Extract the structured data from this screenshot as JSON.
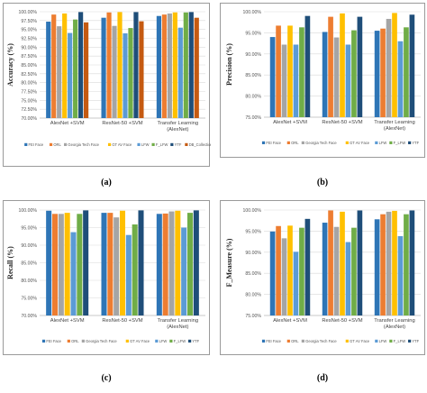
{
  "captions": [
    "(a)",
    "(b)",
    "(c)",
    "(d)"
  ],
  "charts": [
    {
      "type": "bar",
      "ylabel": "Accuracy (%)",
      "yticks": [
        "70.00%",
        "72.50%",
        "75.00%",
        "77.50%",
        "80.00%",
        "82.50%",
        "85.00%",
        "87.50%",
        "90.00%",
        "92.50%",
        "95.00%",
        "97.50%",
        "100.00%"
      ],
      "ylim": [
        70,
        100
      ],
      "categories": [
        [
          "AlexNet +SVM"
        ],
        [
          "ResNet-50 +SVM"
        ],
        [
          "Transfer Learning",
          "(AlexNet)"
        ]
      ],
      "series": [
        {
          "name": "FEI Face",
          "color": "#2e75b6",
          "values": [
            97.2,
            98.3,
            98.8
          ]
        },
        {
          "name": "ORL",
          "color": "#ed7d31",
          "values": [
            99.2,
            99.8,
            99.2
          ]
        },
        {
          "name": "Georgia Tech Face",
          "color": "#a5a5a5",
          "values": [
            95.9,
            96.0,
            99.5
          ]
        },
        {
          "name": "GT AV Face",
          "color": "#ffc000",
          "values": [
            99.5,
            99.9,
            99.8
          ]
        },
        {
          "name": "LFW",
          "color": "#5b9bd5",
          "values": [
            94.0,
            93.9,
            95.5
          ]
        },
        {
          "name": "F_LFW",
          "color": "#70ad47",
          "values": [
            97.8,
            95.4,
            99.8
          ]
        },
        {
          "name": "YTF",
          "color": "#1f4e79",
          "values": [
            99.9,
            99.9,
            99.9
          ]
        },
        {
          "name": "DB_Collection",
          "color": "#c55a11",
          "values": [
            97.0,
            97.3,
            98.3
          ]
        }
      ]
    },
    {
      "type": "bar",
      "ylabel": "Precision (%)",
      "yticks": [
        "75.00%",
        "80.00%",
        "85.00%",
        "90.00%",
        "95.00%",
        "100.00%"
      ],
      "ylim": [
        75,
        100
      ],
      "categories": [
        [
          "AlexNet +SVM"
        ],
        [
          "ResNet-50 +SVM"
        ],
        [
          "Transfer Learning",
          "(AlexNet)"
        ]
      ],
      "series": [
        {
          "name": "FEI Face",
          "color": "#2e75b6",
          "values": [
            94.0,
            95.2,
            95.5
          ]
        },
        {
          "name": "ORL",
          "color": "#ed7d31",
          "values": [
            96.7,
            98.8,
            96.0
          ]
        },
        {
          "name": "Georgia Tech Face",
          "color": "#a5a5a5",
          "values": [
            92.2,
            93.9,
            98.3
          ]
        },
        {
          "name": "GT AV Face",
          "color": "#ffc000",
          "values": [
            96.7,
            99.6,
            99.7
          ]
        },
        {
          "name": "LFW",
          "color": "#5b9bd5",
          "values": [
            92.2,
            92.2,
            93.0
          ]
        },
        {
          "name": "F_LFW",
          "color": "#70ad47",
          "values": [
            96.3,
            95.6,
            96.3
          ]
        },
        {
          "name": "YTF",
          "color": "#1f4e79",
          "values": [
            99.0,
            98.8,
            99.3
          ]
        }
      ]
    },
    {
      "type": "bar",
      "ylabel": "Recall (%)",
      "yticks": [
        "70.00%",
        "75.00%",
        "80.00%",
        "85.00%",
        "90.00%",
        "95.00%",
        "100.00%"
      ],
      "ylim": [
        70,
        100
      ],
      "categories": [
        [
          "AlexNet +SVM"
        ],
        [
          "ResNet-50 +SVM"
        ],
        [
          "Transfer Learning",
          "(AlexNet)"
        ]
      ],
      "series": [
        {
          "name": "FEI Face",
          "color": "#2e75b6",
          "values": [
            99.8,
            99.2,
            98.9
          ]
        },
        {
          "name": "ORL",
          "color": "#ed7d31",
          "values": [
            98.9,
            99.2,
            99.0
          ]
        },
        {
          "name": "Georgia Tech Face",
          "color": "#a5a5a5",
          "values": [
            98.9,
            97.9,
            99.6
          ]
        },
        {
          "name": "GT AV Face",
          "color": "#ffc000",
          "values": [
            99.2,
            99.8,
            99.8
          ]
        },
        {
          "name": "LFW",
          "color": "#5b9bd5",
          "values": [
            93.7,
            92.9,
            95.0
          ]
        },
        {
          "name": "F_LFW",
          "color": "#70ad47",
          "values": [
            98.9,
            95.9,
            99.2
          ]
        },
        {
          "name": "YTF",
          "color": "#1f4e79",
          "values": [
            99.9,
            99.9,
            99.9
          ]
        }
      ]
    },
    {
      "type": "bar",
      "ylabel": "F_Measure (%)",
      "yticks": [
        "75.00%",
        "80.00%",
        "85.00%",
        "90.00%",
        "95.00%",
        "100.00%"
      ],
      "ylim": [
        75,
        100
      ],
      "categories": [
        [
          "AlexNet +SVM"
        ],
        [
          "ResNet-50 +SVM"
        ],
        [
          "Transfer Learning",
          "(AlexNet)"
        ]
      ],
      "series": [
        {
          "name": "FEI Face",
          "color": "#2e75b6",
          "values": [
            94.9,
            97.0,
            97.8
          ]
        },
        {
          "name": "ORL",
          "color": "#ed7d31",
          "values": [
            96.2,
            99.9,
            99.0
          ]
        },
        {
          "name": "Georgia Tech Face",
          "color": "#a5a5a5",
          "values": [
            93.3,
            96.0,
            99.6
          ]
        },
        {
          "name": "GT AV Face",
          "color": "#ffc000",
          "values": [
            96.3,
            99.6,
            99.8
          ]
        },
        {
          "name": "LFW",
          "color": "#5b9bd5",
          "values": [
            90.1,
            92.4,
            93.8
          ]
        },
        {
          "name": "F_LFW",
          "color": "#70ad47",
          "values": [
            95.8,
            95.8,
            99.0
          ]
        },
        {
          "name": "YTF",
          "color": "#1f4e79",
          "values": [
            97.9,
            99.9,
            99.9
          ]
        }
      ]
    }
  ]
}
